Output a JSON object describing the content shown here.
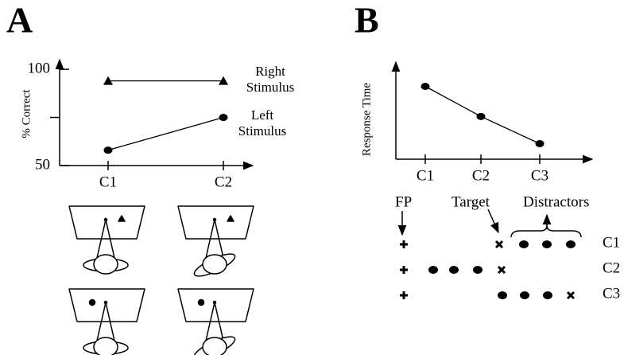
{
  "chart_data": [
    {
      "type": "line",
      "panel": "A",
      "ylabel": "% Correct",
      "categories": [
        "C1",
        "C2"
      ],
      "series": [
        {
          "name": "Right Stimulus",
          "color": "#000000",
          "marker": "triangle",
          "values": [
            94,
            94
          ]
        },
        {
          "name": "Left Stimulus",
          "color": "#000000",
          "marker": "circle",
          "values": [
            58,
            75
          ]
        }
      ],
      "ylim": [
        50,
        105
      ],
      "yticks": [
        50,
        100
      ],
      "minor_yticks": [
        75
      ]
    },
    {
      "type": "line",
      "panel": "B",
      "ylabel": "Response Time",
      "categories": [
        "C1",
        "C2",
        "C3"
      ],
      "series": [
        {
          "name": "Response Time",
          "color": "#000000",
          "marker": "circle",
          "values": [
            75,
            44,
            16
          ]
        }
      ],
      "ylim": [
        0,
        100
      ]
    }
  ],
  "display": {
    "fixation": "FP",
    "target": "Target",
    "distractors": "Distractors",
    "rows": [
      "C1",
      "C2",
      "C3"
    ]
  }
}
